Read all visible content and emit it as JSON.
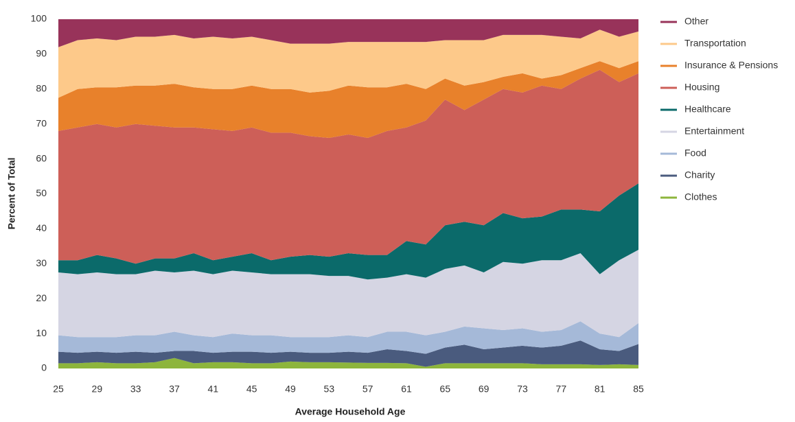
{
  "chart_data": {
    "type": "stacked-area",
    "x_label": "Average Household Age",
    "y_label": "Percent of Total",
    "x": [
      25,
      27,
      29,
      31,
      33,
      35,
      37,
      39,
      41,
      43,
      45,
      47,
      49,
      51,
      53,
      55,
      57,
      59,
      61,
      63,
      65,
      67,
      69,
      71,
      73,
      75,
      77,
      79,
      81,
      83,
      85
    ],
    "xlim": [
      25,
      85
    ],
    "xticks": [
      25,
      29,
      33,
      37,
      41,
      45,
      49,
      53,
      57,
      61,
      65,
      69,
      73,
      77,
      81,
      85
    ],
    "ylim": [
      0,
      100
    ],
    "yticks": [
      0,
      10,
      20,
      30,
      40,
      50,
      60,
      70,
      80,
      90,
      100
    ],
    "series": [
      {
        "name": "Clothes",
        "color": "#8db53c",
        "values": [
          1.5,
          1.5,
          1.8,
          1.5,
          1.5,
          1.8,
          3,
          1.5,
          1.8,
          1.8,
          1.5,
          1.5,
          2,
          1.8,
          1.8,
          1.7,
          1.6,
          1.6,
          1.5,
          0.5,
          1.5,
          1.5,
          1.5,
          1.5,
          1.5,
          1.2,
          1.2,
          1.2,
          1,
          1.2,
          1
        ]
      },
      {
        "name": "Charity",
        "color": "#4a5b7e",
        "values": [
          3.3,
          3,
          3,
          3,
          3.3,
          2.7,
          2,
          3.5,
          2.7,
          3,
          3.3,
          3,
          2.8,
          2.7,
          2.7,
          3.1,
          2.9,
          3.9,
          3.5,
          3.7,
          4.5,
          5.3,
          4,
          4.5,
          5,
          4.8,
          5.3,
          6.8,
          4.5,
          3.8,
          6
        ]
      },
      {
        "name": "Food",
        "color": "#a5b9d8",
        "values": [
          4.7,
          4.5,
          4.2,
          4.5,
          4.7,
          5,
          5.5,
          4.5,
          4.5,
          5.2,
          4.7,
          5,
          4.2,
          4.5,
          4.5,
          4.7,
          4.5,
          5,
          5.5,
          5.3,
          4.5,
          5.2,
          6,
          5,
          5,
          4.5,
          4.5,
          5.5,
          4.5,
          4,
          6
        ]
      },
      {
        "name": "Entertainment",
        "color": "#d5d5e3",
        "values": [
          18,
          18,
          18.5,
          18,
          17.5,
          18.5,
          17,
          18.5,
          18,
          18,
          18,
          17.5,
          18,
          18,
          17.5,
          17,
          16.5,
          15.5,
          16.5,
          16.5,
          18,
          17.5,
          16,
          19.5,
          18.5,
          20.5,
          20,
          19.5,
          17,
          22,
          21
        ]
      },
      {
        "name": "Healthcare",
        "color": "#0b6a6a",
        "values": [
          3.5,
          4,
          5,
          4.5,
          3,
          3.5,
          4,
          5,
          4,
          4,
          5.5,
          4,
          5,
          5.5,
          5.5,
          6.5,
          7,
          6.5,
          9.5,
          9.5,
          12.5,
          12.5,
          13.5,
          14,
          13,
          12.5,
          14.5,
          12.5,
          18,
          18.5,
          19
        ]
      },
      {
        "name": "Housing",
        "color": "#cd5f58",
        "values": [
          37,
          38,
          37.5,
          37.5,
          40,
          38,
          37.5,
          36,
          37.5,
          36,
          36,
          36.5,
          35.5,
          34,
          34,
          34,
          33.5,
          35.5,
          32.5,
          35.5,
          36,
          32,
          36,
          35.5,
          36,
          37.5,
          34.5,
          37.5,
          40.5,
          32.5,
          31.5
        ]
      },
      {
        "name": "Insurance & Pensions",
        "color": "#e8812b",
        "values": [
          9.5,
          11,
          10.5,
          11.5,
          11,
          11.5,
          12.5,
          11.5,
          11.5,
          12,
          12,
          12.5,
          12.5,
          12.5,
          13.5,
          14,
          14.5,
          12.5,
          12.5,
          9,
          6,
          7,
          5,
          3.5,
          5.5,
          2,
          4,
          3,
          2.5,
          4,
          3.5
        ]
      },
      {
        "name": "Transportation",
        "color": "#fdc98a",
        "values": [
          14.5,
          14,
          14,
          13.5,
          14,
          14,
          14,
          14,
          15,
          14.5,
          14,
          14,
          13,
          14,
          13.5,
          12.5,
          13,
          13,
          12,
          13.5,
          11,
          13,
          12,
          12,
          11,
          12.5,
          11,
          8.5,
          9,
          9,
          8.5
        ]
      },
      {
        "name": "Other",
        "color": "#98335a",
        "values": [
          8,
          6,
          5.5,
          6,
          5,
          5,
          4.5,
          5.5,
          5,
          5.5,
          5,
          6,
          7,
          7,
          7,
          6.5,
          6.5,
          6.5,
          6.5,
          6.5,
          6,
          6,
          6,
          4.5,
          4.5,
          4.5,
          5,
          5.5,
          3,
          5,
          3.5
        ]
      }
    ]
  }
}
